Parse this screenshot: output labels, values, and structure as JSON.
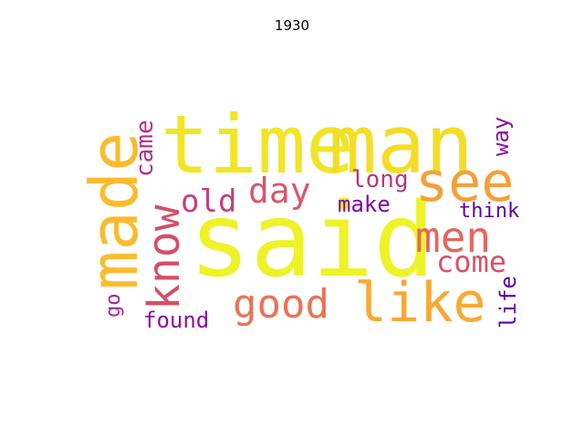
{
  "title": "1930",
  "words": [
    {
      "text": "said",
      "color": "#eef227"
    },
    {
      "text": "time",
      "color": "#f0e527"
    },
    {
      "text": "man",
      "color": "#f3dd26"
    },
    {
      "text": "made",
      "color": "#fbbb2e"
    },
    {
      "text": "see",
      "color": "#f5a038"
    },
    {
      "text": "like",
      "color": "#f8a932"
    },
    {
      "text": "know",
      "color": "#d2506a"
    },
    {
      "text": "good",
      "color": "#ea7355"
    },
    {
      "text": "men",
      "color": "#e3675f"
    },
    {
      "text": "day",
      "color": "#d8576b"
    },
    {
      "text": "old",
      "color": "#c53f7b"
    },
    {
      "text": "come",
      "color": "#d6536b"
    },
    {
      "text": "long",
      "color": "#b73779"
    },
    {
      "text": "came",
      "color": "#b52f8c"
    },
    {
      "text": "make",
      "color": "#7e03a8"
    },
    {
      "text": "way",
      "color": "#8b0aa5"
    },
    {
      "text": "think",
      "color": "#5c01a6"
    },
    {
      "text": "go",
      "color": "#9e2a9c"
    },
    {
      "text": "found",
      "color": "#8f0da4"
    },
    {
      "text": "life",
      "color": "#5b02a3"
    }
  ]
}
